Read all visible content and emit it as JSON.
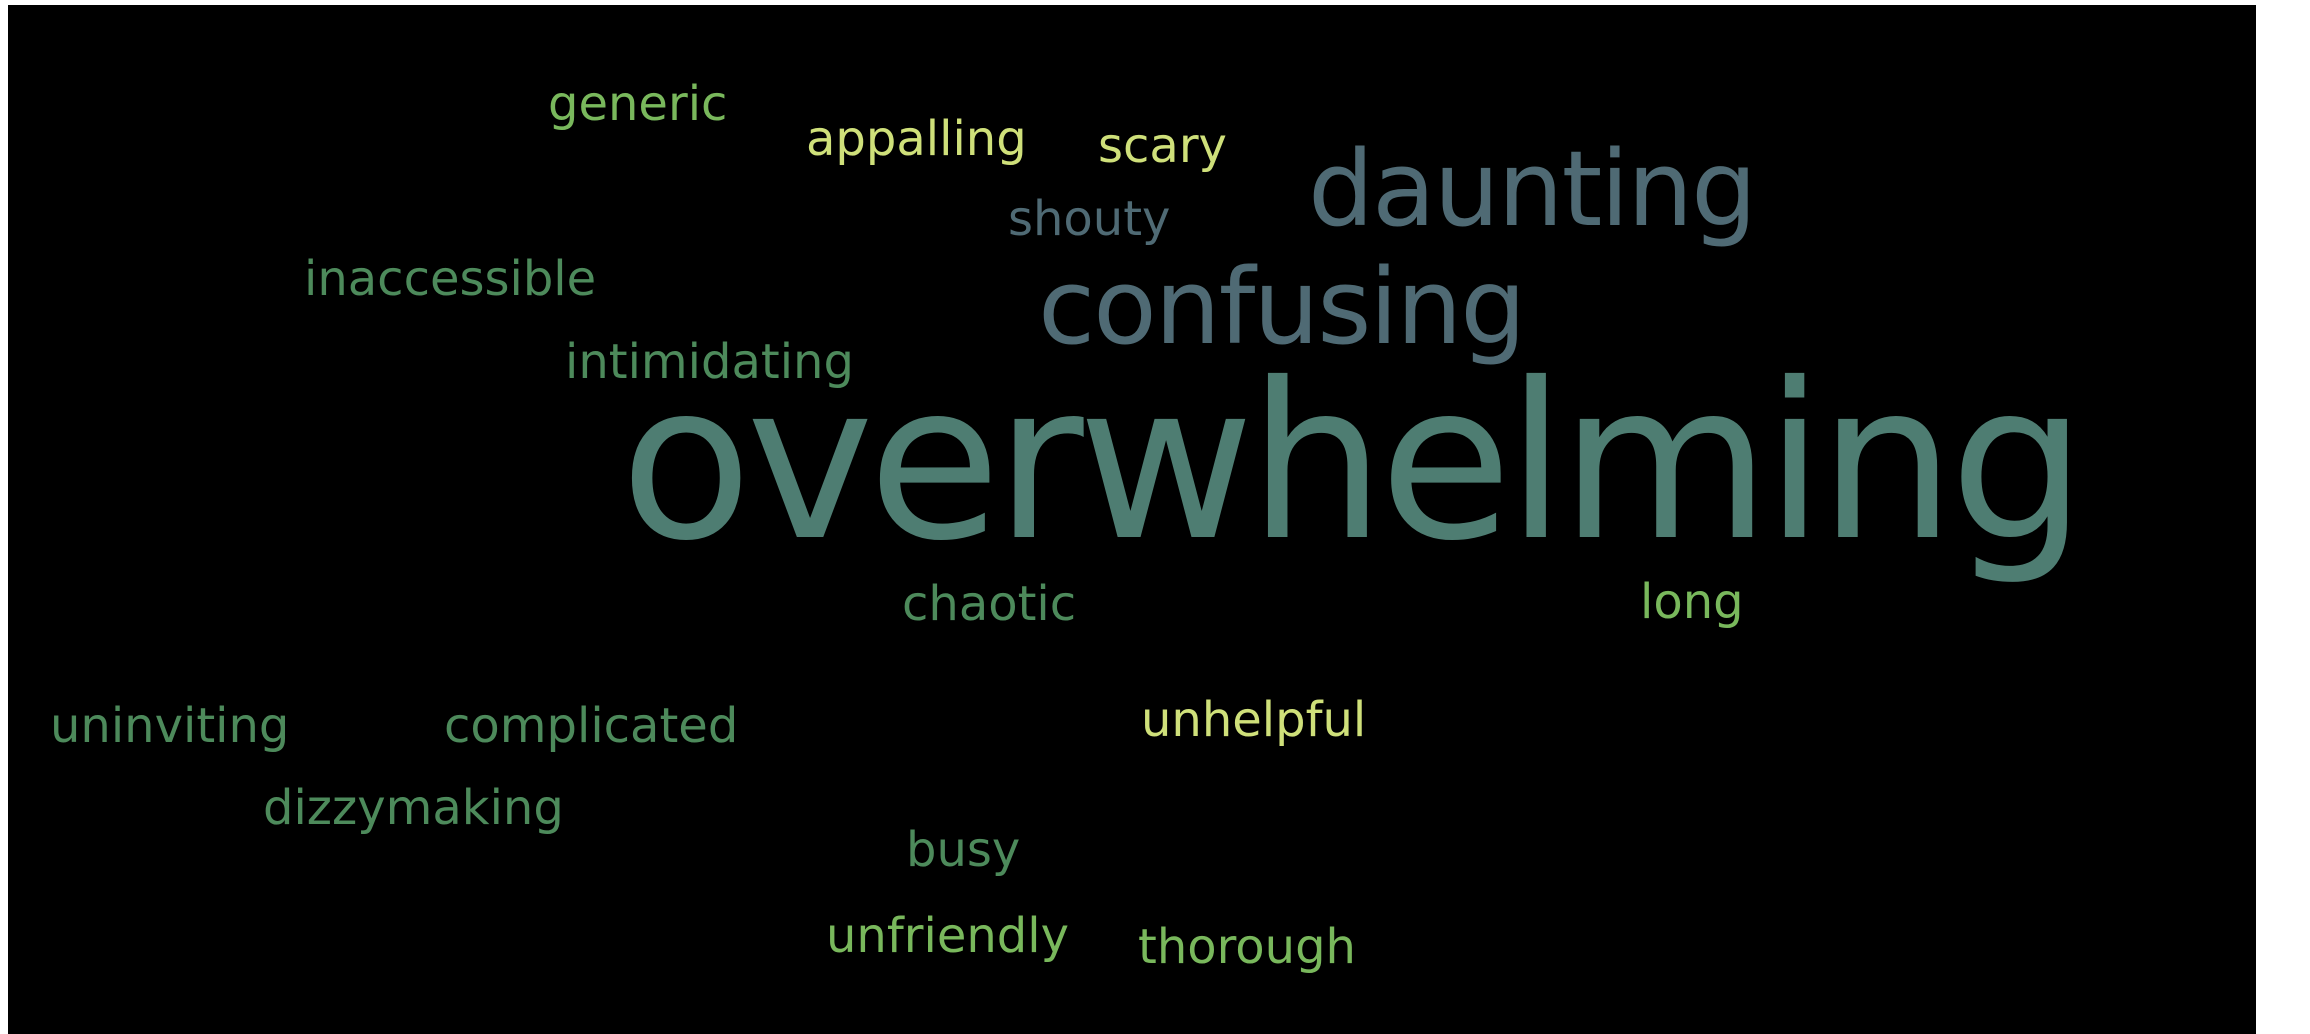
{
  "word_cloud": {
    "words": [
      {
        "key": "overwhelming",
        "text": "overwhelming",
        "color": "#4e7d72"
      },
      {
        "key": "confusing",
        "text": "confusing",
        "color": "#4f6a74"
      },
      {
        "key": "daunting",
        "text": "daunting",
        "color": "#4f6a74"
      },
      {
        "key": "generic",
        "text": "generic",
        "color": "#79b85c"
      },
      {
        "key": "appalling",
        "text": "appalling",
        "color": "#cfe07a"
      },
      {
        "key": "scary",
        "text": "scary",
        "color": "#cfe07a"
      },
      {
        "key": "shouty",
        "text": "shouty",
        "color": "#4f6a74"
      },
      {
        "key": "inaccessible",
        "text": "inaccessible",
        "color": "#4d8a5b"
      },
      {
        "key": "intimidating",
        "text": "intimidating",
        "color": "#4d8a5b"
      },
      {
        "key": "chaotic",
        "text": "chaotic",
        "color": "#4d8a5b"
      },
      {
        "key": "long",
        "text": "long",
        "color": "#79b85c"
      },
      {
        "key": "uninviting",
        "text": "uninviting",
        "color": "#4d8a5b"
      },
      {
        "key": "complicated",
        "text": "complicated",
        "color": "#4d8a5b"
      },
      {
        "key": "unhelpful",
        "text": "unhelpful",
        "color": "#cfe07a"
      },
      {
        "key": "dizzymaking",
        "text": "dizzymaking",
        "color": "#4d8a5b"
      },
      {
        "key": "busy",
        "text": "busy",
        "color": "#4d8a5b"
      },
      {
        "key": "unfriendly",
        "text": "unfriendly",
        "color": "#79b85c"
      },
      {
        "key": "thorough",
        "text": "thorough",
        "color": "#79b85c"
      }
    ]
  }
}
